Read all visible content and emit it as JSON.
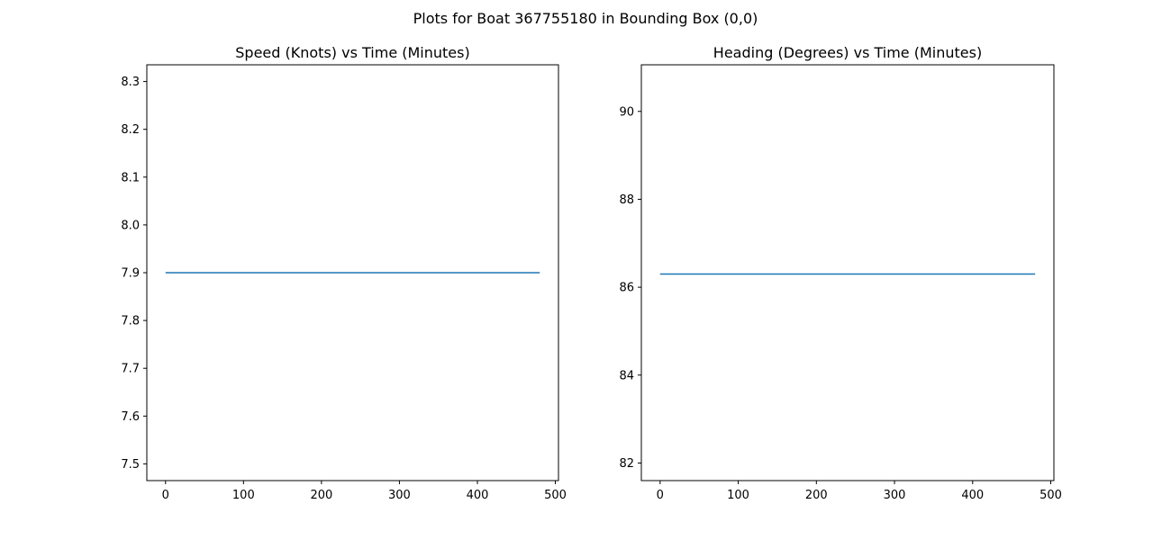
{
  "figure": {
    "suptitle": "Plots for Boat 367755180 in Bounding Box (0,0)"
  },
  "chart_data": [
    {
      "type": "line",
      "title": "Speed (Knots) vs Time (Minutes)",
      "xlabel": "",
      "ylabel": "",
      "xlim": [
        -24,
        504
      ],
      "ylim": [
        7.465,
        8.335
      ],
      "xticks": [
        0,
        100,
        200,
        300,
        400,
        500
      ],
      "yticks": [
        7.5,
        7.6,
        7.7,
        7.8,
        7.9,
        8.0,
        8.1,
        8.2,
        8.3
      ],
      "ytick_labels": [
        "7.5",
        "7.6",
        "7.7",
        "7.8",
        "7.9",
        "8.0",
        "8.1",
        "8.2",
        "8.3"
      ],
      "grid": false,
      "series": [
        {
          "color": "#1f77b4",
          "x": [
            0,
            480
          ],
          "y": [
            7.9,
            7.9
          ]
        }
      ]
    },
    {
      "type": "line",
      "title": "Heading (Degrees) vs Time (Minutes)",
      "xlabel": "",
      "ylabel": "",
      "xlim": [
        -24,
        504
      ],
      "ylim": [
        81.6,
        91.06
      ],
      "xticks": [
        0,
        100,
        200,
        300,
        400,
        500
      ],
      "yticks": [
        82,
        84,
        86,
        88,
        90
      ],
      "ytick_labels": [
        "82",
        "84",
        "86",
        "88",
        "90"
      ],
      "grid": false,
      "series": [
        {
          "color": "#1f77b4",
          "x": [
            0,
            480
          ],
          "y": [
            86.3,
            86.3
          ]
        }
      ]
    }
  ]
}
